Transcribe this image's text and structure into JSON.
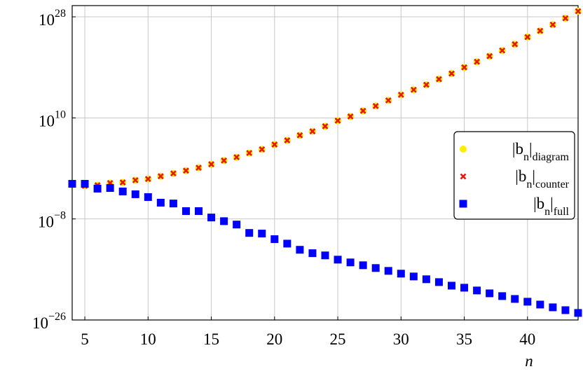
{
  "chart_data": {
    "type": "scatter",
    "x_label": "n",
    "x": [
      4,
      5,
      6,
      7,
      8,
      9,
      10,
      11,
      12,
      13,
      14,
      15,
      16,
      17,
      18,
      19,
      20,
      21,
      22,
      23,
      24,
      25,
      26,
      27,
      28,
      29,
      30,
      31,
      32,
      33,
      34,
      35,
      36,
      37,
      38,
      39,
      40,
      41,
      42,
      43,
      44
    ],
    "series": [
      {
        "name": "|b_n|_diagram",
        "color": "#ffee00",
        "marker": "circle",
        "values": [
          0.018,
          0.0079,
          0.01,
          0.025,
          0.032,
          0.079,
          0.13,
          0.4,
          1.3,
          4,
          13,
          56,
          250,
          1000,
          5600,
          25000.0,
          180000.0,
          1000000.0,
          7900000.0,
          40000000.0,
          320000000.0,
          3200000000.0,
          18000000000.0,
          180000000000.0,
          1300000000000.0,
          13000000000000.0,
          130000000000000.0,
          1000000000000000.0,
          7900000000000000.0,
          7.9e+16,
          7.9e+17,
          1e+19,
          1e+20,
          1e+21,
          1e+22,
          1.3e+23,
          2.5e+24,
          3.2e+25,
          4e+26,
          5.6e+27,
          1e+29
        ]
      },
      {
        "name": "|b_n|_counter",
        "color": "#e8160c",
        "marker": "cross",
        "values": [
          0.018,
          0.0079,
          0.01,
          0.025,
          0.032,
          0.079,
          0.13,
          0.4,
          1.3,
          4,
          13,
          56,
          250,
          1000,
          5600,
          25000.0,
          180000.0,
          1000000.0,
          7900000.0,
          40000000.0,
          320000000.0,
          3200000000.0,
          18000000000.0,
          180000000000.0,
          1300000000000.0,
          13000000000000.0,
          130000000000000.0,
          1000000000000000.0,
          7900000000000000.0,
          7.9e+16,
          7.9e+17,
          1e+19,
          1e+20,
          1e+21,
          1e+22,
          1.3e+23,
          2.5e+24,
          3.2e+25,
          4e+26,
          5.6e+27,
          1e+29
        ]
      },
      {
        "name": "|b_n|_full",
        "color": "#0000ff",
        "marker": "square",
        "values": [
          0.018,
          0.018,
          0.0025,
          0.0032,
          0.00079,
          0.00025,
          7.9e-05,
          7.9e-06,
          5.6e-06,
          2.5e-07,
          2.5e-07,
          1.8e-08,
          4e-09,
          1e-09,
          3.2e-11,
          2.5e-11,
          2.5e-12,
          4e-13,
          3.2e-14,
          7.9e-15,
          3.2e-15,
          5.6e-16,
          1.8e-16,
          5.6e-17,
          1.8e-17,
          5.6e-18,
          1.8e-18,
          5.6e-19,
          1.8e-19,
          5.6e-20,
          1.3e-20,
          5.6e-21,
          1.8e-21,
          5.6e-22,
          1.8e-22,
          5.6e-23,
          1.8e-23,
          5.6e-24,
          1.8e-24,
          5.6e-25,
          1.8e-25
        ]
      }
    ],
    "xlim": [
      4,
      44
    ],
    "xticks": [
      5,
      10,
      15,
      20,
      25,
      30,
      35,
      40
    ],
    "ylim": [
      1e-26,
      1e+30
    ],
    "ylog": true,
    "yticks": [
      {
        "value": 1e-26,
        "label": "10^−26"
      },
      {
        "value": 1e-08,
        "label": "10^−8"
      },
      {
        "value": 10000000000.0,
        "label": "10^10"
      },
      {
        "value": 1e+28,
        "label": "10^28"
      }
    ],
    "grid": true,
    "legend": "right"
  }
}
